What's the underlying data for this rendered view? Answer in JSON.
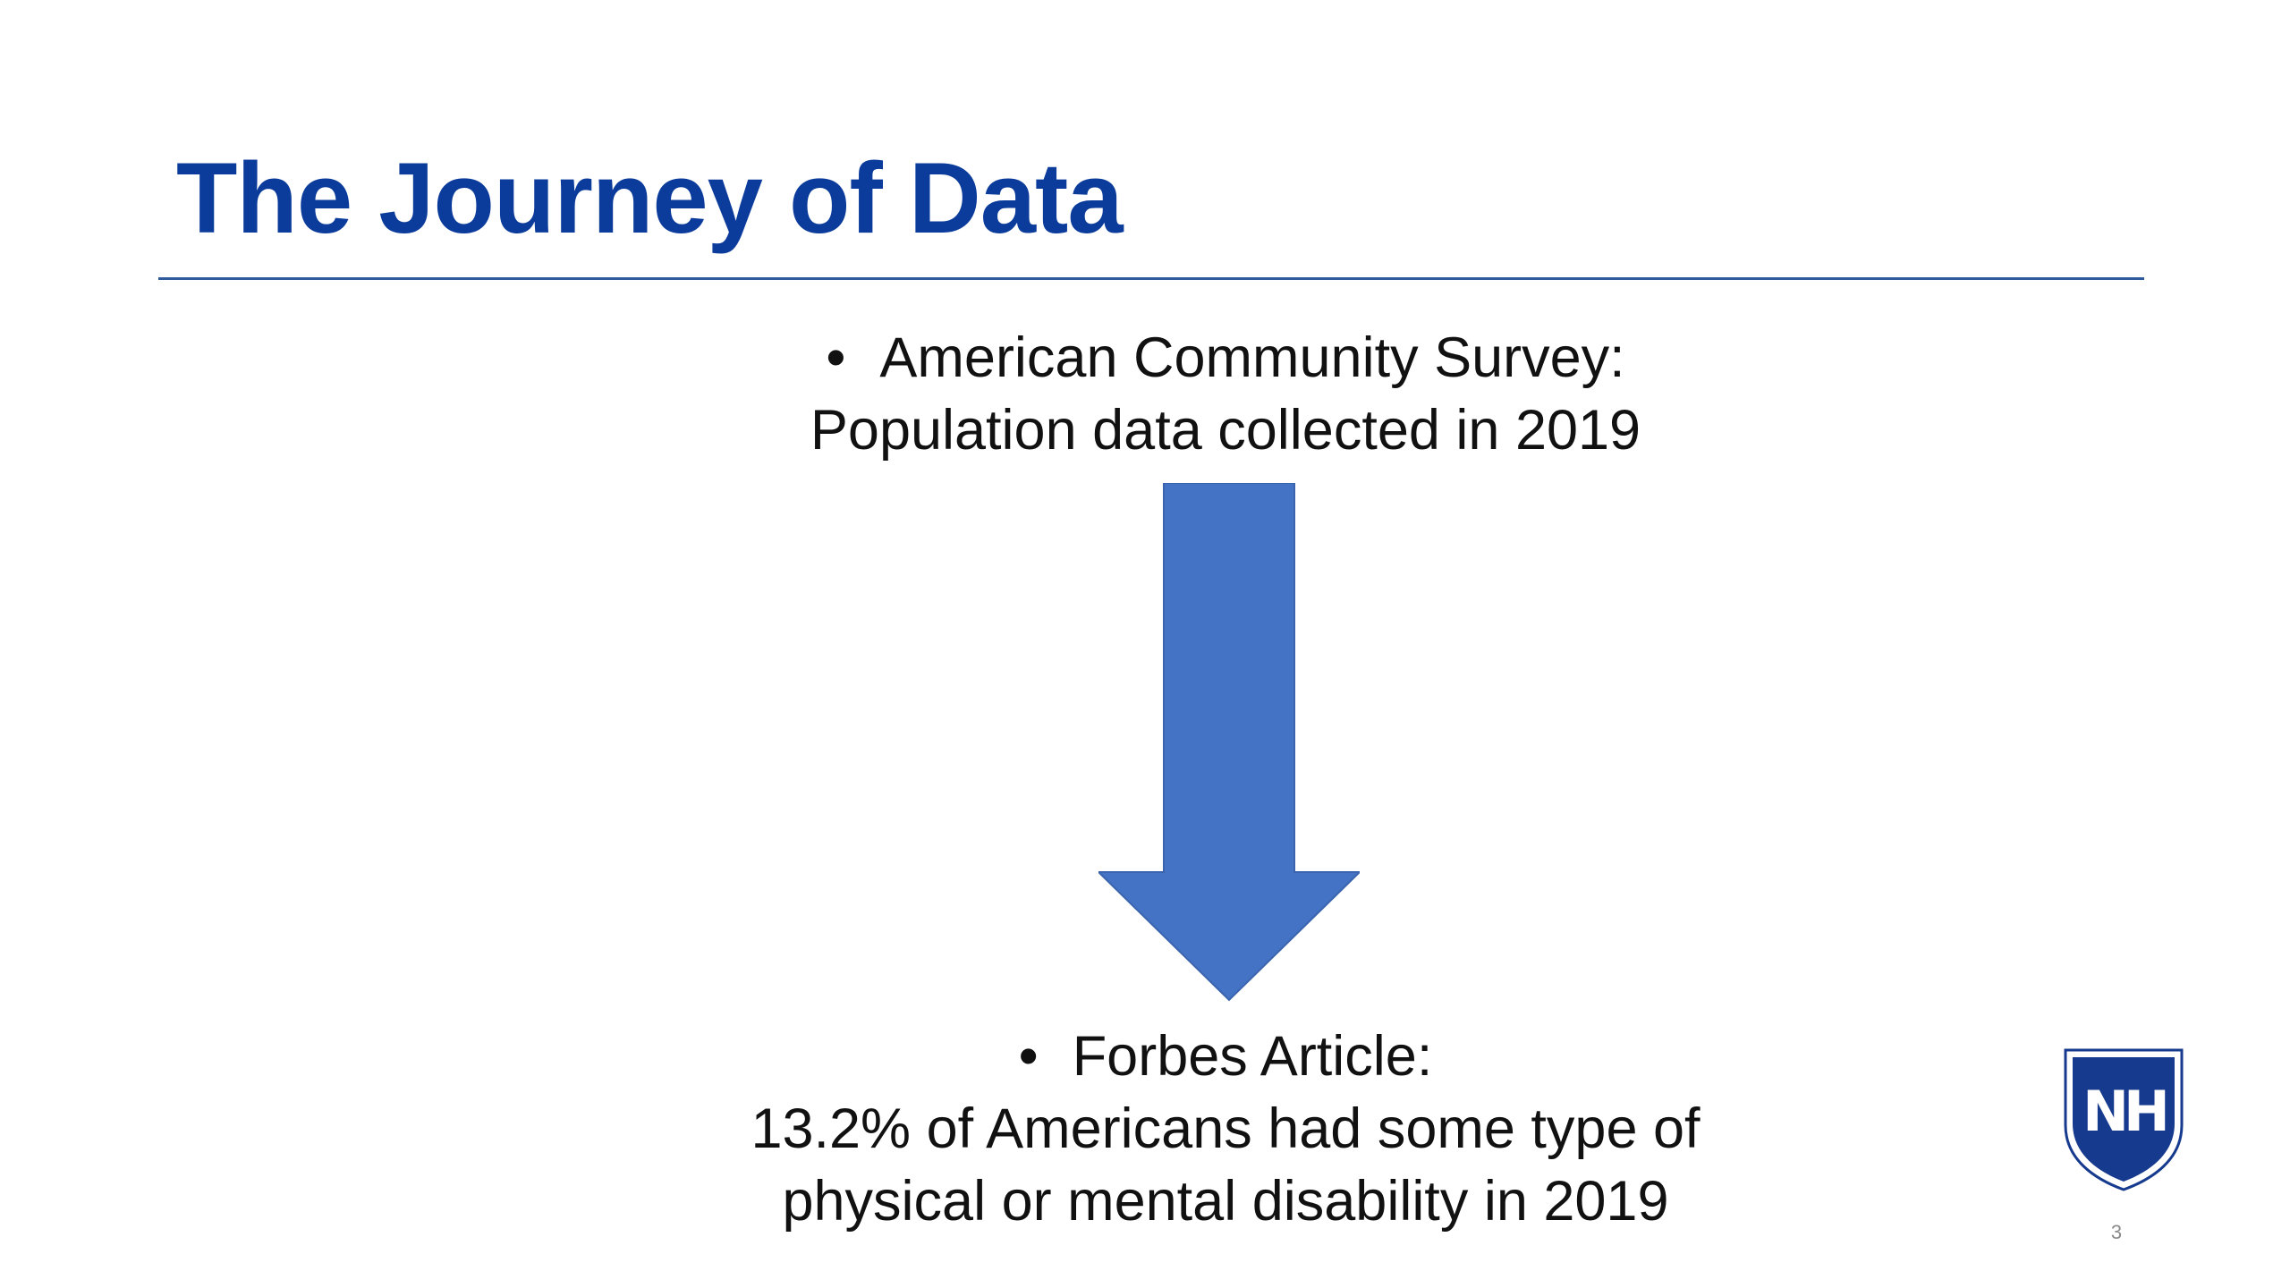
{
  "colors": {
    "title": "#0c3c9b",
    "rule": "#2f5a9e",
    "arrow_fill": "#4472c4",
    "arrow_stroke": "#3a64ad",
    "logo": "#163a8e",
    "text": "#111111"
  },
  "slide": {
    "title": "The Journey of Data",
    "top_block": {
      "bullet": "•",
      "heading": "American Community Survey:",
      "body": "Population data collected in 2019"
    },
    "arrow": {
      "icon": "arrow-down-icon"
    },
    "bottom_block": {
      "bullet": "•",
      "heading": "Forbes Article:",
      "body_line1": "13.2% of Americans had some type of",
      "body_line2": "physical or mental disability in 2019"
    },
    "logo": {
      "icon": "unh-shield-logo",
      "text": "NH"
    },
    "page_number": "3"
  }
}
